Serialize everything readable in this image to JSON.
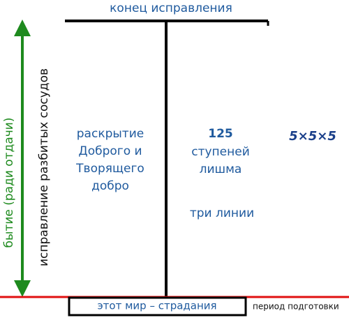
{
  "top_label": "конец исправления",
  "left_axis": {
    "outer_label": "бытие (ради отдачи)",
    "inner_label": "исправление разбитых сосудов"
  },
  "left_block": {
    "lines": [
      "раскрытие",
      "Доброго и",
      "Творящего",
      "добро"
    ]
  },
  "right_block": {
    "number": "125",
    "lines": [
      "ступеней",
      "лишма"
    ],
    "extra": "три линии"
  },
  "formula": "5×5×5",
  "bottom_box": "этот мир – страдания",
  "bottom_note": "период подготовки"
}
